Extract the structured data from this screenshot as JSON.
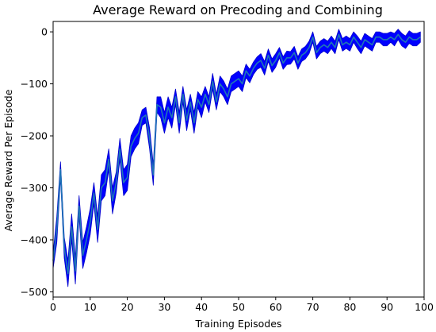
{
  "chart_data": {
    "type": "line",
    "title": "Average Reward on Precoding and Combining",
    "xlabel": "Training Episodes",
    "ylabel": "Average Reward Per Episode",
    "xlim": [
      0,
      100
    ],
    "ylim": [
      -510,
      20
    ],
    "xticks": [
      0,
      10,
      20,
      30,
      40,
      50,
      60,
      70,
      80,
      90,
      100
    ],
    "yticks": [
      0,
      -100,
      -200,
      -300,
      -400,
      -500
    ],
    "grid": false,
    "legend": "none",
    "colors": {
      "band": "#0000ff",
      "band_edge": "#0000cc",
      "line": "#1f77b4"
    },
    "series": [
      {
        "x": [
          0,
          1,
          2,
          3,
          4,
          5,
          6,
          7,
          8,
          9,
          10,
          11,
          12,
          13,
          14,
          15,
          16,
          17,
          18,
          19,
          20,
          21,
          22,
          23,
          24,
          25,
          26,
          27,
          28,
          29,
          30,
          31,
          32,
          33,
          34,
          35,
          36,
          37,
          38,
          39,
          40,
          41,
          42,
          43,
          44,
          45,
          46,
          47,
          48,
          49,
          50,
          51,
          52,
          53,
          54,
          55,
          56,
          57,
          58,
          59,
          60,
          61,
          62,
          63,
          64,
          65,
          66,
          67,
          68,
          69,
          70,
          71,
          72,
          73,
          74,
          75,
          76,
          77,
          78,
          79,
          80,
          81,
          82,
          83,
          84,
          85,
          86,
          87,
          88,
          89,
          90,
          91,
          92,
          93,
          94,
          95,
          96,
          97,
          98,
          99
        ],
        "mean": [
          -440,
          -380,
          -265,
          -415,
          -465,
          -375,
          -460,
          -335,
          -430,
          -400,
          -365,
          -310,
          -380,
          -300,
          -290,
          -245,
          -325,
          -290,
          -225,
          -290,
          -280,
          -220,
          -205,
          -195,
          -165,
          -160,
          -205,
          -275,
          -140,
          -145,
          -175,
          -145,
          -165,
          -125,
          -175,
          -120,
          -170,
          -135,
          -175,
          -130,
          -145,
          -120,
          -140,
          -95,
          -135,
          -100,
          -110,
          -125,
          -100,
          -95,
          -90,
          -100,
          -75,
          -85,
          -70,
          -60,
          -55,
          -70,
          -45,
          -65,
          -55,
          -40,
          -60,
          -50,
          -50,
          -40,
          -60,
          -45,
          -40,
          -30,
          -10,
          -40,
          -30,
          -25,
          -30,
          -20,
          -30,
          -5,
          -25,
          -20,
          -25,
          -10,
          -20,
          -30,
          -15,
          -20,
          -25,
          -10,
          -10,
          -15,
          -15,
          -10,
          -15,
          -5,
          -15,
          -20,
          -10,
          -15,
          -15,
          -10
        ],
        "upper": [
          -425,
          -355,
          -250,
          -395,
          -440,
          -350,
          -435,
          -315,
          -405,
          -375,
          -340,
          -290,
          -355,
          -275,
          -265,
          -225,
          -300,
          -270,
          -205,
          -265,
          -255,
          -200,
          -185,
          -175,
          -150,
          -145,
          -185,
          -255,
          -125,
          -125,
          -155,
          -125,
          -145,
          -110,
          -155,
          -105,
          -150,
          -120,
          -155,
          -115,
          -125,
          -105,
          -125,
          -80,
          -120,
          -85,
          -95,
          -110,
          -85,
          -80,
          -75,
          -85,
          -62,
          -72,
          -58,
          -48,
          -42,
          -57,
          -33,
          -52,
          -42,
          -30,
          -48,
          -37,
          -38,
          -28,
          -48,
          -33,
          -28,
          -18,
          0,
          -28,
          -18,
          -13,
          -18,
          -8,
          -18,
          5,
          -13,
          -8,
          -13,
          0,
          -8,
          -18,
          -3,
          -8,
          -13,
          0,
          0,
          -3,
          -3,
          0,
          -3,
          5,
          -3,
          -8,
          2,
          -3,
          -3,
          0
        ]
      }
    ]
  }
}
